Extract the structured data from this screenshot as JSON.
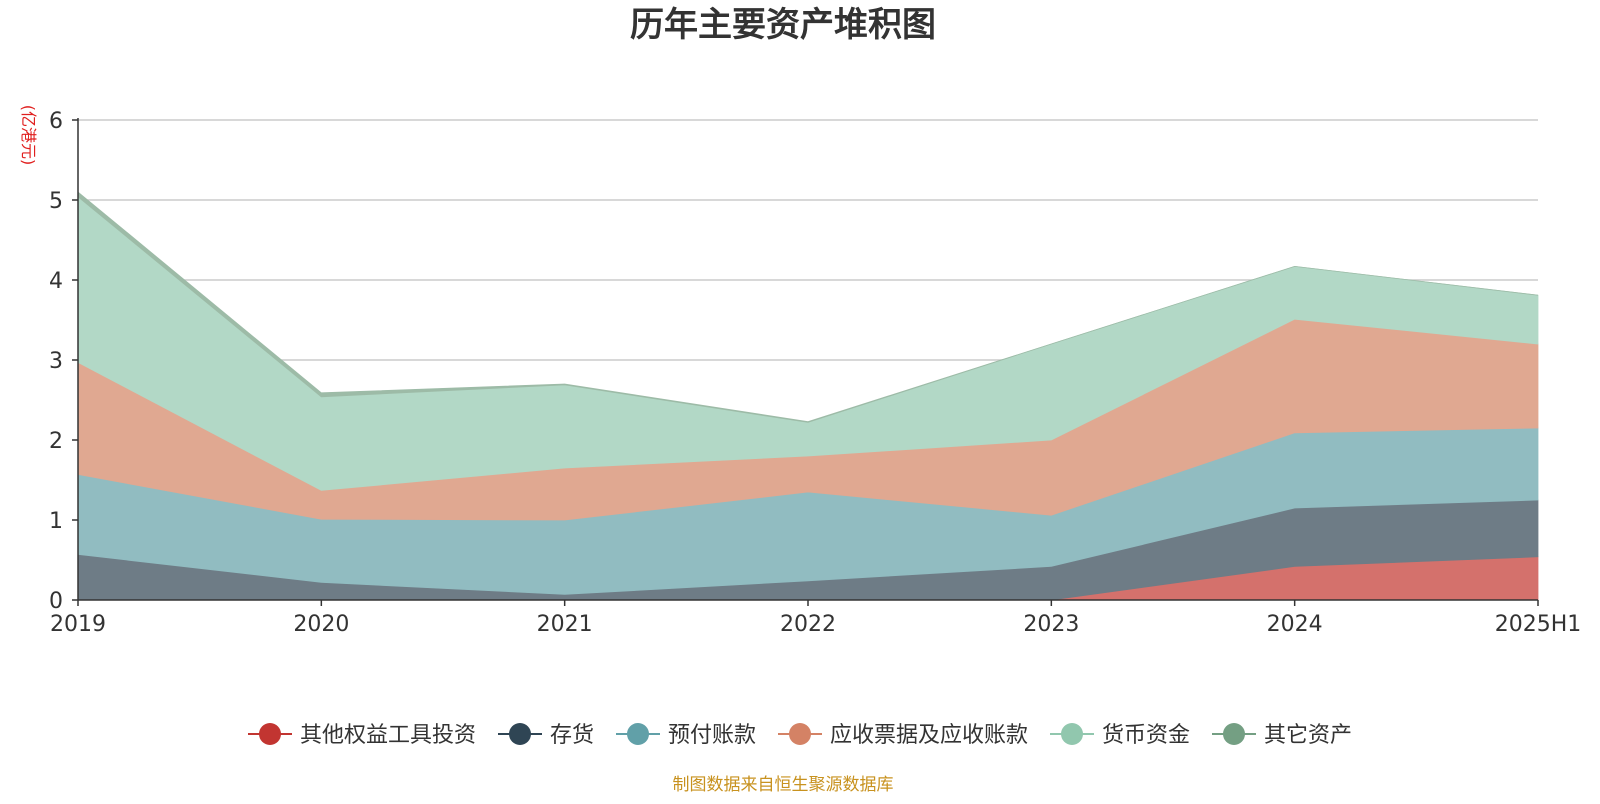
{
  "chart_data": {
    "type": "area",
    "stacked": true,
    "title": "历年主要资产堆积图",
    "ylabel": "(亿港元)",
    "xlabel": "",
    "source": "制图数据来自恒生聚源数据库",
    "categories": [
      "2019",
      "2020",
      "2021",
      "2022",
      "2023",
      "2024",
      "2025H1"
    ],
    "ylim": [
      0,
      6
    ],
    "yticks": [
      0,
      1,
      2,
      3,
      4,
      5,
      6
    ],
    "grid": true,
    "legend_position": "bottom",
    "series": [
      {
        "name": "其他权益工具投资",
        "color": "#c23531",
        "fill": "#d4716c",
        "values": [
          0,
          0,
          0,
          0,
          0,
          0.42,
          0.54
        ]
      },
      {
        "name": "存货",
        "color": "#2f4554",
        "fill": "#6e7c86",
        "values": [
          0.57,
          0.22,
          0.07,
          0.24,
          0.42,
          0.73,
          0.71
        ]
      },
      {
        "name": "预付账款",
        "color": "#61a0a8",
        "fill": "#91bcc1",
        "values": [
          1.0,
          0.79,
          0.93,
          1.11,
          0.64,
          0.94,
          0.9
        ]
      },
      {
        "name": "应收票据及应收账款",
        "color": "#d48265",
        "fill": "#e0a891",
        "values": [
          1.4,
          0.36,
          0.65,
          0.45,
          0.94,
          1.42,
          1.05
        ]
      },
      {
        "name": "货币资金",
        "color": "#91c7ae",
        "fill": "#b2d8c6",
        "values": [
          2.07,
          1.17,
          1.04,
          0.42,
          1.2,
          0.66,
          0.61
        ]
      },
      {
        "name": "其它资产",
        "color": "#749f83",
        "fill": "#9dbba7",
        "values": [
          0.06,
          0.05,
          0.01,
          0.01,
          0.0,
          0.0,
          0.0
        ]
      }
    ]
  }
}
